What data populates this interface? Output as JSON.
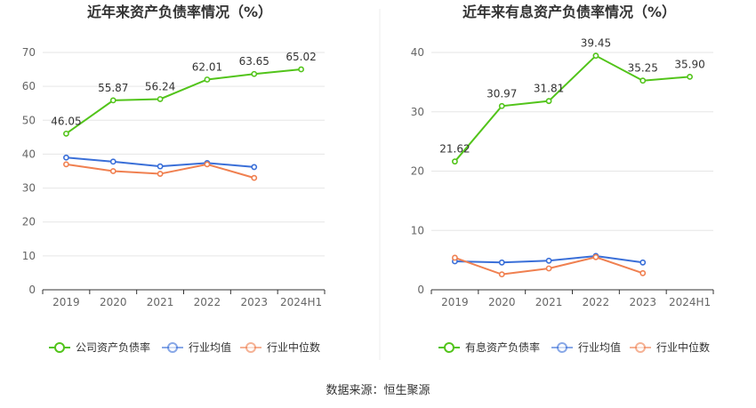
{
  "colors": {
    "company": "#52c41a",
    "industry_avg": "#3a6fd8",
    "industry_median": "#f08050",
    "grid": "#e6e6e6",
    "divider": "#eeeeee"
  },
  "source": "数据来源：恒生聚源",
  "chart_data": [
    {
      "type": "line",
      "title": "近年来资产负债率情况（%）",
      "categories": [
        "2019",
        "2020",
        "2021",
        "2022",
        "2023",
        "2024H1"
      ],
      "ylim": [
        0,
        70
      ],
      "yticks": [
        0,
        10,
        20,
        30,
        40,
        50,
        60,
        70
      ],
      "grid": true,
      "legend_position": "bottom",
      "series": [
        {
          "name": "公司资产负债率",
          "role": "company",
          "values": [
            46.05,
            55.87,
            56.24,
            62.01,
            63.65,
            65.02
          ],
          "labels": [
            "46.05",
            "55.87",
            "56.24",
            "62.01",
            "63.65",
            "65.02"
          ]
        },
        {
          "name": "行业均值",
          "role": "industry_avg",
          "values": [
            39.0,
            37.8,
            36.4,
            37.4,
            36.2,
            null
          ]
        },
        {
          "name": "行业中位数",
          "role": "industry_median",
          "values": [
            37.0,
            35.0,
            34.2,
            37.0,
            33.0,
            null
          ]
        }
      ]
    },
    {
      "type": "line",
      "title": "近年来有息资产负债率情况（%）",
      "categories": [
        "2019",
        "2020",
        "2021",
        "2022",
        "2023",
        "2024H1"
      ],
      "ylim": [
        0,
        40
      ],
      "yticks": [
        0,
        10,
        20,
        30,
        40
      ],
      "grid": true,
      "legend_position": "bottom",
      "series": [
        {
          "name": "有息资产负债率",
          "role": "company",
          "values": [
            21.62,
            30.97,
            31.81,
            39.45,
            35.25,
            35.9
          ],
          "labels": [
            "21.62",
            "30.97",
            "31.81",
            "39.45",
            "35.25",
            "35.90"
          ]
        },
        {
          "name": "行业均值",
          "role": "industry_avg",
          "values": [
            4.8,
            4.6,
            4.9,
            5.7,
            4.6,
            null
          ]
        },
        {
          "name": "行业中位数",
          "role": "industry_median",
          "values": [
            5.4,
            2.6,
            3.6,
            5.5,
            2.8,
            null
          ]
        }
      ]
    }
  ]
}
